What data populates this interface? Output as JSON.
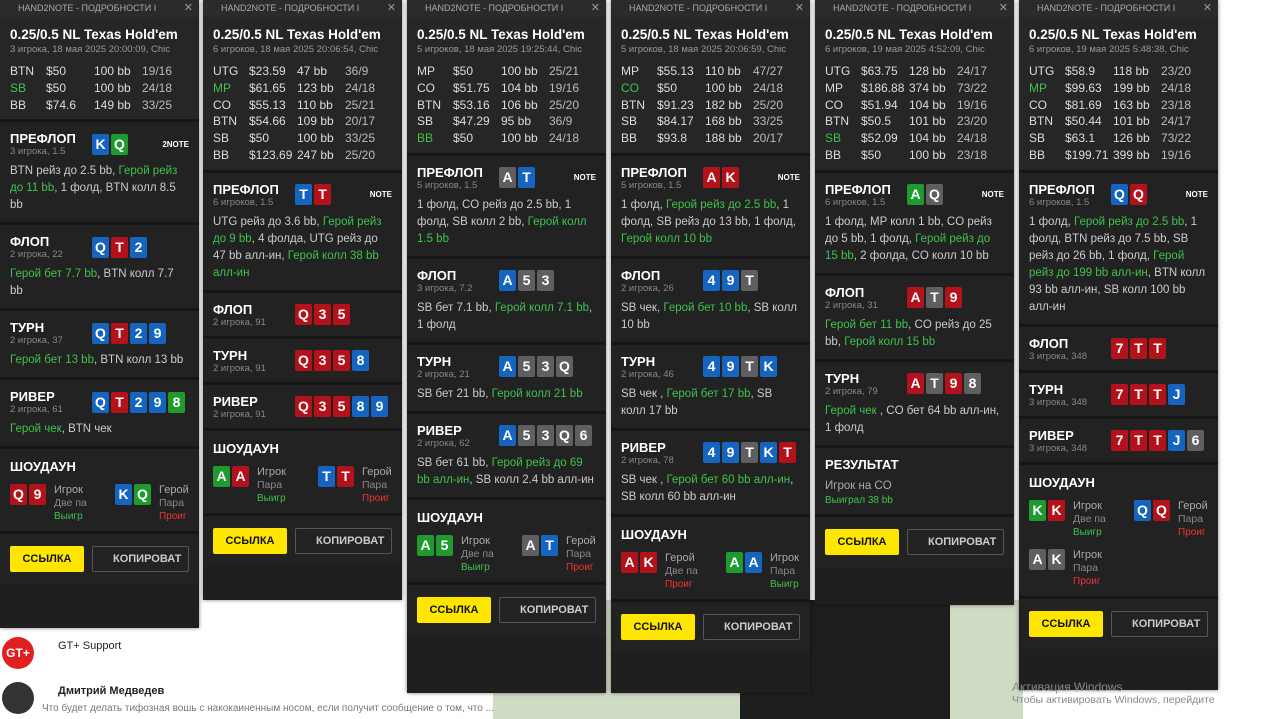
{
  "panels": [
    {
      "header": "HAND2NOTE - ПОДРОБНОСТИ I",
      "title": "0.25/0.5 NL Texas Hold'em",
      "subtitle": "3 игрока, 18 мая 2025 20:00:09, Chic",
      "logo": "2NOTE",
      "players": [
        {
          "pos": "BTN",
          "stack": "$50",
          "bb": "100 bb",
          "stats": "19/16"
        },
        {
          "pos": "SB",
          "stack": "$50",
          "bb": "100 bb",
          "stats": "24/18",
          "hero": true
        },
        {
          "pos": "BB",
          "stack": "$74.6",
          "bb": "149 bb",
          "stats": "33/25"
        }
      ],
      "streets": [
        {
          "name": "ПРЕФЛОП",
          "info": "3 игрока, 1.5",
          "ranks": [
            "K",
            "Q"
          ],
          "suits": "dc",
          "action": [
            {
              "text": "BTN рейз до 2.5 bb, "
            },
            {
              "text": "Герой рейз до 11 bb",
              "hero": true
            },
            {
              "text": ", 1 фолд, BTN колл 8.5 bb"
            }
          ]
        },
        {
          "name": "ФЛОП",
          "info": "2 игрока, 22",
          "ranks": [
            "Q",
            "T",
            "2"
          ],
          "suits": "dhd",
          "action": [
            {
              "text": "Герой бет 7.7 bb",
              "hero": true
            },
            {
              "text": ", BTN колл 7.7 bb"
            }
          ]
        },
        {
          "name": "ТУРН",
          "info": "2 игрока, 37",
          "ranks": [
            "Q",
            "T",
            "2",
            "9"
          ],
          "suits": "dhdd",
          "action": [
            {
              "text": "Герой бет 13 bb",
              "hero": true
            },
            {
              "text": ", BTN колл 13 bb"
            }
          ]
        },
        {
          "name": "РИВЕР",
          "info": "2 игрока, 61",
          "ranks": [
            "Q",
            "T",
            "2",
            "9",
            "8"
          ],
          "suits": "dhddc",
          "action": [
            {
              "text": "Герой чек",
              "hero": true
            },
            {
              "text": ", BTN чек"
            }
          ]
        }
      ],
      "showdown": {
        "title": "ШОУДАУН",
        "hands": [
          {
            "ranks": [
              "Q",
              "9"
            ],
            "suits": "hh",
            "name": "Игрок",
            "hand": "Две па",
            "result": "Выигр",
            "win": true
          },
          {
            "ranks": [
              "K",
              "Q"
            ],
            "suits": "dc",
            "name": "Герой",
            "hand": "Пара",
            "result": "Проиг",
            "hero": true
          }
        ]
      },
      "buttons": [
        "ССЫЛКА",
        "КОПИРОВАТ"
      ]
    },
    {
      "header": "HAND2NOTE - ПОДРОБНОСТИ I",
      "title": "0.25/0.5 NL Texas Hold'em",
      "subtitle": "6 игроков, 18 мая 2025 20:06:54, Chic",
      "logo": "NOTE",
      "players": [
        {
          "pos": "UTG",
          "stack": "$23.59",
          "bb": "47 bb",
          "stats": "36/9"
        },
        {
          "pos": "MP",
          "stack": "$61.65",
          "bb": "123 bb",
          "stats": "24/18",
          "hero": true
        },
        {
          "pos": "CO",
          "stack": "$55.13",
          "bb": "110 bb",
          "stats": "25/21"
        },
        {
          "pos": "BTN",
          "stack": "$54.66",
          "bb": "109 bb",
          "stats": "20/17"
        },
        {
          "pos": "SB",
          "stack": "$50",
          "bb": "100 bb",
          "stats": "33/25"
        },
        {
          "pos": "BB",
          "stack": "$123.69",
          "bb": "247 bb",
          "stats": "25/20"
        }
      ],
      "streets": [
        {
          "name": "ПРЕФЛОП",
          "info": "6 игроков, 1.5",
          "ranks": [
            "T",
            "T"
          ],
          "suits": "dh",
          "action": [
            {
              "text": "UTG рейз до 3.6 bb, "
            },
            {
              "text": "Герой рейз до 9 bb",
              "hero": true
            },
            {
              "text": ", 4 фолда, UTG рейз до 47 bb алл-ин, "
            },
            {
              "text": "Герой колл 38 bb алл-ин",
              "hero": true
            }
          ]
        },
        {
          "name": "ФЛОП",
          "info": "2 игрока, 91",
          "ranks": [
            "Q",
            "3",
            "5"
          ],
          "suits": "hhh"
        },
        {
          "name": "ТУРН",
          "info": "2 игрока, 91",
          "ranks": [
            "Q",
            "3",
            "5",
            "8"
          ],
          "suits": "hhhd"
        },
        {
          "name": "РИВЕР",
          "info": "2 игрока, 91",
          "ranks": [
            "Q",
            "3",
            "5",
            "8",
            "9"
          ],
          "suits": "hhhdd"
        }
      ],
      "showdown": {
        "title": "ШОУДАУН",
        "hands": [
          {
            "ranks": [
              "A",
              "A"
            ],
            "suits": "ch",
            "name": "Игрок",
            "hand": "Пара",
            "result": "Выигр",
            "win": true
          },
          {
            "ranks": [
              "T",
              "T"
            ],
            "suits": "dh",
            "name": "Герой",
            "hand": "Пара",
            "result": "Проиг",
            "hero": true
          }
        ]
      },
      "buttons": [
        "ССЫЛКА",
        "КОПИРОВАТ"
      ]
    },
    {
      "header": "HAND2NOTE - ПОДРОБНОСТИ I",
      "title": "0.25/0.5 NL Texas Hold'em",
      "subtitle": "5 игроков, 18 мая 2025 19:25:44, Chic",
      "logo": "NOTE",
      "players": [
        {
          "pos": "MP",
          "stack": "$50",
          "bb": "100 bb",
          "stats": "25/21"
        },
        {
          "pos": "CO",
          "stack": "$51.75",
          "bb": "104 bb",
          "stats": "19/16"
        },
        {
          "pos": "BTN",
          "stack": "$53.16",
          "bb": "106 bb",
          "stats": "25/20"
        },
        {
          "pos": "SB",
          "stack": "$47.29",
          "bb": "95 bb",
          "stats": "36/9"
        },
        {
          "pos": "BB",
          "stack": "$50",
          "bb": "100 bb",
          "stats": "24/18",
          "hero": true
        }
      ],
      "streets": [
        {
          "name": "ПРЕФЛОП",
          "info": "5 игроков, 1.5",
          "ranks": [
            "A",
            "T"
          ],
          "suits": "sd",
          "action": [
            {
              "text": "1 фолд, CO рейз до 2.5 bb, 1 фолд, SB колл 2 bb, "
            },
            {
              "text": "Герой колл 1.5 bb",
              "hero": true
            }
          ]
        },
        {
          "name": "ФЛОП",
          "info": "3 игрока, 7.2",
          "ranks": [
            "A",
            "5",
            "3"
          ],
          "suits": "dss",
          "action": [
            {
              "text": "SB бет 7.1 bb, "
            },
            {
              "text": "Герой колл 7.1 bb",
              "hero": true
            },
            {
              "text": ", 1 фолд"
            }
          ]
        },
        {
          "name": "ТУРН",
          "info": "2 игрока, 21",
          "ranks": [
            "A",
            "5",
            "3",
            "Q"
          ],
          "suits": "dsss",
          "action": [
            {
              "text": "SB бет 21 bb, "
            },
            {
              "text": "Герой колл 21 bb",
              "hero": true
            }
          ]
        },
        {
          "name": "РИВЕР",
          "info": "2 игрока, 62",
          "ranks": [
            "A",
            "5",
            "3",
            "Q",
            "6"
          ],
          "suits": "dssss",
          "action": [
            {
              "text": "SB бет 61 bb, "
            },
            {
              "text": "Герой рейз до 69 bb алл-ин",
              "hero": true
            },
            {
              "text": ", SB колл 2.4 bb алл-ин"
            }
          ]
        }
      ],
      "showdown": {
        "title": "ШОУДАУН",
        "hands": [
          {
            "ranks": [
              "A",
              "5"
            ],
            "suits": "cc",
            "name": "Игрок",
            "hand": "Две па",
            "result": "Выигр",
            "win": true
          },
          {
            "ranks": [
              "A",
              "T"
            ],
            "suits": "sd",
            "name": "Герой",
            "hand": "Пара",
            "result": "Проиг",
            "hero": true
          }
        ]
      },
      "buttons": [
        "ССЫЛКА",
        "КОПИРОВАТ"
      ]
    },
    {
      "header": "HAND2NOTE - ПОДРОБНОСТИ I",
      "title": "0.25/0.5 NL Texas Hold'em",
      "subtitle": "5 игроков, 18 мая 2025 20:06:59, Chic",
      "logo": "NOTE",
      "players": [
        {
          "pos": "MP",
          "stack": "$55.13",
          "bb": "110 bb",
          "stats": "47/27"
        },
        {
          "pos": "CO",
          "stack": "$50",
          "bb": "100 bb",
          "stats": "24/18",
          "hero": true
        },
        {
          "pos": "BTN",
          "stack": "$91.23",
          "bb": "182 bb",
          "stats": "25/20"
        },
        {
          "pos": "SB",
          "stack": "$84.17",
          "bb": "168 bb",
          "stats": "33/25"
        },
        {
          "pos": "BB",
          "stack": "$93.8",
          "bb": "188 bb",
          "stats": "20/17"
        }
      ],
      "streets": [
        {
          "name": "ПРЕФЛОП",
          "info": "5 игроков, 1.5",
          "ranks": [
            "A",
            "K"
          ],
          "suits": "hh",
          "action": [
            {
              "text": "1 фолд, "
            },
            {
              "text": "Герой рейз до 2.5 bb",
              "hero": true
            },
            {
              "text": ", 1 фолд, SB рейз до 13 bb, 1 фолд, "
            },
            {
              "text": "Герой колл 10 bb",
              "hero": true
            }
          ]
        },
        {
          "name": "ФЛОП",
          "info": "2 игрока, 26",
          "ranks": [
            "4",
            "9",
            "T"
          ],
          "suits": "dds",
          "action": [
            {
              "text": "SB чек, "
            },
            {
              "text": "Герой бет 10 bb",
              "hero": true
            },
            {
              "text": ", SB колл 10 bb"
            }
          ]
        },
        {
          "name": "ТУРН",
          "info": "2 игрока, 46",
          "ranks": [
            "4",
            "9",
            "T",
            "K"
          ],
          "suits": "ddsd",
          "action": [
            {
              "text": "SB чек , "
            },
            {
              "text": "Герой бет 17 bb",
              "hero": true
            },
            {
              "text": ", SB колл 17 bb"
            }
          ]
        },
        {
          "name": "РИВЕР",
          "info": "2 игрока, 78",
          "ranks": [
            "4",
            "9",
            "T",
            "K",
            "T"
          ],
          "suits": "ddsdh",
          "action": [
            {
              "text": "SB чек , "
            },
            {
              "text": "Герой бет 60 bb алл-ин",
              "hero": true
            },
            {
              "text": ", SB колл 60 bb алл-ин"
            }
          ]
        }
      ],
      "showdown": {
        "title": "ШОУДАУН",
        "hands": [
          {
            "ranks": [
              "A",
              "K"
            ],
            "suits": "hh",
            "name": "Герой",
            "hand": "Две па",
            "result": "Проиг",
            "hero": true
          },
          {
            "ranks": [
              "A",
              "A"
            ],
            "suits": "cd",
            "name": "Игрок",
            "hand": "Пара",
            "result": "Выигр",
            "win": true
          }
        ]
      },
      "buttons": [
        "ССЫЛКА",
        "КОПИРОВАТ"
      ]
    },
    {
      "header": "HAND2NOTE - ПОДРОБНОСТИ I",
      "title": "0.25/0.5 NL Texas Hold'em",
      "subtitle": "6 игроков, 19 мая 2025 4:52:09, Chic",
      "logo": "NOTE",
      "players": [
        {
          "pos": "UTG",
          "stack": "$63.75",
          "bb": "128 bb",
          "stats": "24/17"
        },
        {
          "pos": "MP",
          "stack": "$186.88",
          "bb": "374 bb",
          "stats": "73/22"
        },
        {
          "pos": "CO",
          "stack": "$51.94",
          "bb": "104 bb",
          "stats": "19/16"
        },
        {
          "pos": "BTN",
          "stack": "$50.5",
          "bb": "101 bb",
          "stats": "23/20"
        },
        {
          "pos": "SB",
          "stack": "$52.09",
          "bb": "104 bb",
          "stats": "24/18",
          "hero": true
        },
        {
          "pos": "BB",
          "stack": "$50",
          "bb": "100 bb",
          "stats": "23/18"
        }
      ],
      "streets": [
        {
          "name": "ПРЕФЛОП",
          "info": "6 игроков, 1.5",
          "ranks": [
            "A",
            "Q"
          ],
          "suits": "cs",
          "action": [
            {
              "text": "1 фолд, MP колл 1 bb, CO рейз до 5 bb, 1 фолд, "
            },
            {
              "text": "Герой рейз до 15 bb",
              "hero": true
            },
            {
              "text": ", 2 фолда, CO колл 10 bb"
            }
          ]
        },
        {
          "name": "ФЛОП",
          "info": "2 игрока, 31",
          "ranks": [
            "A",
            "T",
            "9"
          ],
          "suits": "hsh",
          "action": [
            {
              "text": "Герой бет 11 bb",
              "hero": true
            },
            {
              "text": ", CO рейз до 25 bb, "
            },
            {
              "text": "Герой колл 15 bb",
              "hero": true
            }
          ]
        },
        {
          "name": "ТУРН",
          "info": "2 игрока, 79",
          "ranks": [
            "A",
            "T",
            "9",
            "8"
          ],
          "suits": "hshs",
          "action": [
            {
              "text": "Герой чек",
              "hero": true
            },
            {
              "text": " , CO бет 64 bb алл-ин, 1 фолд"
            }
          ]
        }
      ],
      "result": {
        "title": "РЕЗУЛЬТАТ",
        "player": "Игрок на CO",
        "won": "Выиграл 38 bb"
      },
      "buttons": [
        "ССЫЛКА",
        "КОПИРОВАТ"
      ]
    },
    {
      "header": "HAND2NOTE - ПОДРОБНОСТИ I",
      "title": "0.25/0.5 NL Texas Hold'em",
      "subtitle": "6 игроков, 19 мая 2025 5:48:38, Chic",
      "logo": "NOTE",
      "players": [
        {
          "pos": "UTG",
          "stack": "$58.9",
          "bb": "118 bb",
          "stats": "23/20"
        },
        {
          "pos": "MP",
          "stack": "$99.63",
          "bb": "199 bb",
          "stats": "24/18",
          "hero": true
        },
        {
          "pos": "CO",
          "stack": "$81.69",
          "bb": "163 bb",
          "stats": "23/18"
        },
        {
          "pos": "BTN",
          "stack": "$50.44",
          "bb": "101 bb",
          "stats": "24/17"
        },
        {
          "pos": "SB",
          "stack": "$63.1",
          "bb": "126 bb",
          "stats": "73/22"
        },
        {
          "pos": "BB",
          "stack": "$199.71",
          "bb": "399 bb",
          "stats": "19/16"
        }
      ],
      "streets": [
        {
          "name": "ПРЕФЛОП",
          "info": "6 игроков, 1.5",
          "ranks": [
            "Q",
            "Q"
          ],
          "suits": "dh",
          "action": [
            {
              "text": "1 фолд, "
            },
            {
              "text": "Герой рейз до 2.5 bb",
              "hero": true
            },
            {
              "text": ", 1 фолд, BTN рейз до 7.5 bb, SB рейз до 26 bb, 1 фолд, "
            },
            {
              "text": "Герой рейз до 199 bb алл-ин",
              "hero": true
            },
            {
              "text": ", BTN колл 93 bb алл-ин, SB колл 100 bb алл-ин"
            }
          ]
        },
        {
          "name": "ФЛОП",
          "info": "3 игрока, 348",
          "ranks": [
            "7",
            "T",
            "T"
          ],
          "suits": "hhh"
        },
        {
          "name": "ТУРН",
          "info": "3 игрока, 348",
          "ranks": [
            "7",
            "T",
            "T",
            "J"
          ],
          "suits": "hhhd"
        },
        {
          "name": "РИВЕР",
          "info": "3 игрока, 348",
          "ranks": [
            "7",
            "T",
            "T",
            "J",
            "6"
          ],
          "suits": "hhhds"
        }
      ],
      "showdown": {
        "title": "ШОУДАУН",
        "hands": [
          {
            "ranks": [
              "K",
              "K"
            ],
            "suits": "ch",
            "name": "Игрок",
            "hand": "Две па",
            "result": "Выигр",
            "win": true
          },
          {
            "ranks": [
              "Q",
              "Q"
            ],
            "suits": "dh",
            "name": "Герой",
            "hand": "Пара",
            "result": "Проиг",
            "hero": true
          },
          {
            "ranks": [
              "A",
              "K"
            ],
            "suits": "ss",
            "name": "Игрок",
            "hand": "Пара",
            "result": "Проиг"
          }
        ]
      },
      "buttons": [
        "ССЫЛКА",
        "КОПИРОВАТ"
      ]
    }
  ],
  "chat": {
    "first": "GT+ Support",
    "second": "Дмитрий Медведев",
    "message": "Что будет делать тифозная вошь с накокаиненным носом, если получит сообщение о том, что ..."
  },
  "watermark": {
    "title": "Активация Windows",
    "text": "Чтобы активировать Windows, перейдите"
  }
}
